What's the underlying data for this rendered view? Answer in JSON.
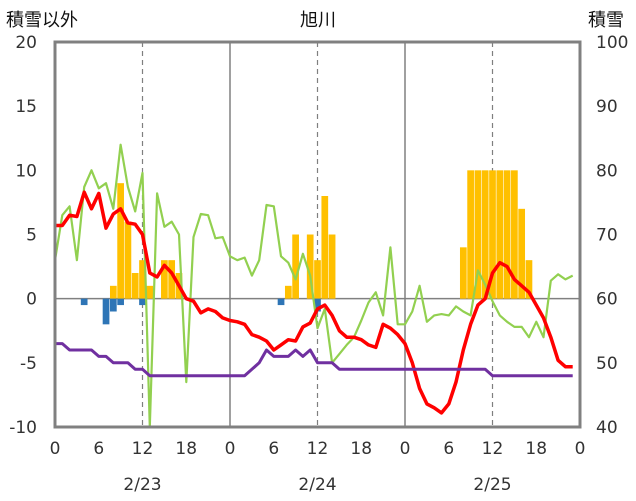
{
  "chart_data": {
    "type": "bar+line",
    "title": "旭川",
    "ylabel_left": "積雪以外",
    "ylabel_right": "積雪",
    "ylim_left": [
      -10,
      20
    ],
    "ylim_right": [
      40,
      100
    ],
    "yticks_left": [
      "-10",
      "-5",
      "0",
      "5",
      "10",
      "15",
      "20"
    ],
    "yticks_right": [
      "40",
      "50",
      "60",
      "70",
      "80",
      "90",
      "100"
    ],
    "xlim_hours": [
      0,
      72
    ],
    "xticks": [
      "0",
      "6",
      "12",
      "18",
      "0",
      "6",
      "12",
      "18",
      "0",
      "6",
      "12",
      "18",
      "0"
    ],
    "day_labels": [
      "2/23",
      "2/24",
      "2/25"
    ],
    "grid": "dashed verticals at hour 12 of each day, solid at day boundaries",
    "colors": {
      "snowfall": "#FFC000",
      "snow_change": "#2E75B6",
      "temperature": "#FF0000",
      "wind": "#92D050",
      "snow_depth": "#7030A0"
    },
    "snowfall_bars": {
      "hours": [
        8,
        9,
        10,
        11,
        12,
        13,
        14,
        15,
        16,
        17,
        32,
        33,
        34,
        35,
        36,
        37,
        38,
        39,
        40,
        41,
        56,
        57,
        58,
        59,
        60,
        61,
        62,
        63,
        64,
        65
      ],
      "values": [
        1,
        9,
        6,
        2,
        3,
        1,
        0,
        3,
        3,
        2,
        1,
        5,
        0,
        5,
        3,
        8,
        5,
        0,
        0,
        0,
        4,
        10,
        10,
        10,
        10,
        10,
        10,
        10,
        7,
        3
      ]
    },
    "snow_change_bars": {
      "hours": [
        4,
        7,
        8,
        9,
        12,
        31,
        36
      ],
      "values": [
        -0.5,
        -2,
        -1,
        -0.5,
        -0.5,
        -0.5,
        -1
      ]
    },
    "temperature": {
      "hours": [
        0,
        1,
        2,
        3,
        4,
        5,
        6,
        7,
        8,
        9,
        10,
        11,
        12,
        13,
        14,
        15,
        16,
        17,
        18,
        19,
        20,
        21,
        22,
        23,
        24,
        25,
        26,
        27,
        28,
        29,
        30,
        31,
        32,
        33,
        34,
        35,
        36,
        37,
        38,
        39,
        40,
        41,
        42,
        43,
        44,
        45,
        46,
        47,
        48,
        49,
        50,
        51,
        52,
        53,
        54,
        55,
        56,
        57,
        58,
        59,
        60,
        61,
        62,
        63,
        64,
        65,
        66,
        67,
        68,
        69,
        70,
        71
      ],
      "values": [
        5.7,
        5.7,
        6.5,
        6.4,
        8.3,
        7.0,
        8.2,
        5.5,
        6.6,
        7.0,
        5.9,
        5.8,
        5.0,
        2.0,
        1.7,
        2.6,
        2.0,
        1.0,
        0.0,
        -0.2,
        -1.1,
        -0.8,
        -1.0,
        -1.5,
        -1.7,
        -1.8,
        -2.0,
        -2.8,
        -3.0,
        -3.3,
        -4.0,
        -3.6,
        -3.2,
        -3.3,
        -2.2,
        -1.9,
        -0.8,
        -0.5,
        -1.3,
        -2.5,
        -3.0,
        -3.0,
        -3.2,
        -3.6,
        -3.8,
        -2.0,
        -2.3,
        -2.8,
        -3.5,
        -5.0,
        -7.0,
        -8.2,
        -8.5,
        -8.9,
        -8.2,
        -6.5,
        -4.0,
        -2.0,
        -0.5,
        0.0,
        2.0,
        2.8,
        2.5,
        1.5,
        1.0,
        0.5,
        -0.5,
        -1.5,
        -3.0,
        -4.8,
        -5.3,
        -5.3
      ]
    },
    "wind": {
      "hours": [
        0,
        1,
        2,
        3,
        4,
        5,
        6,
        7,
        8,
        9,
        10,
        11,
        12,
        13,
        14,
        15,
        16,
        17,
        18,
        19,
        20,
        21,
        22,
        23,
        24,
        25,
        26,
        27,
        28,
        29,
        30,
        31,
        32,
        33,
        34,
        35,
        36,
        37,
        38,
        39,
        40,
        41,
        42,
        43,
        44,
        45,
        46,
        47,
        48,
        49,
        50,
        51,
        52,
        53,
        54,
        55,
        56,
        57,
        58,
        59,
        60,
        61,
        62,
        63,
        64,
        65,
        66,
        67,
        68,
        69,
        70,
        71
      ],
      "values": [
        3.0,
        6.5,
        7.2,
        3.0,
        8.7,
        10.0,
        8.6,
        9.0,
        7.0,
        12.0,
        8.7,
        6.8,
        9.8,
        -10.0,
        8.2,
        5.6,
        6.0,
        5.0,
        -6.5,
        4.8,
        6.6,
        6.5,
        4.7,
        4.8,
        3.3,
        3.0,
        3.2,
        1.8,
        3.0,
        7.3,
        7.2,
        3.3,
        2.8,
        1.5,
        3.5,
        1.8,
        -2.3,
        -0.8,
        -5.0,
        -4.3,
        -3.6,
        -3.0,
        -1.7,
        -0.3,
        0.5,
        -1.3,
        4.0,
        -2.0,
        -2.0,
        -1.0,
        1.0,
        -1.8,
        -1.3,
        -1.2,
        -1.3,
        -0.6,
        -1.0,
        -1.3,
        2.2,
        1.1,
        -0.2,
        -1.3,
        -1.8,
        -2.2,
        -2.2,
        -3.0,
        -1.8,
        -3.0,
        1.4,
        1.9,
        1.5,
        1.8
      ]
    },
    "snow_depth": {
      "hours": [
        0,
        1,
        2,
        3,
        4,
        5,
        6,
        7,
        8,
        9,
        10,
        11,
        12,
        13,
        14,
        15,
        16,
        17,
        18,
        19,
        20,
        21,
        22,
        23,
        24,
        25,
        26,
        27,
        28,
        29,
        30,
        31,
        32,
        33,
        34,
        35,
        36,
        37,
        38,
        39,
        40,
        41,
        42,
        43,
        44,
        45,
        46,
        47,
        48,
        49,
        50,
        51,
        52,
        53,
        54,
        55,
        56,
        57,
        58,
        59,
        60,
        61,
        62,
        63,
        64,
        65,
        66,
        67,
        68,
        69,
        70,
        71
      ],
      "values": [
        53,
        53,
        52,
        52,
        52,
        52,
        51,
        51,
        50,
        50,
        50,
        49,
        49,
        48,
        48,
        48,
        48,
        48,
        48,
        48,
        48,
        48,
        48,
        48,
        48,
        48,
        48,
        49,
        50,
        52,
        51,
        51,
        51,
        52,
        51,
        52,
        50,
        50,
        50,
        49,
        49,
        49,
        49,
        49,
        49,
        49,
        49,
        49,
        49,
        49,
        49,
        49,
        49,
        49,
        49,
        49,
        49,
        49,
        49,
        49,
        48,
        48,
        48,
        48,
        48,
        48,
        48,
        48,
        48,
        48,
        48,
        48
      ]
    }
  }
}
